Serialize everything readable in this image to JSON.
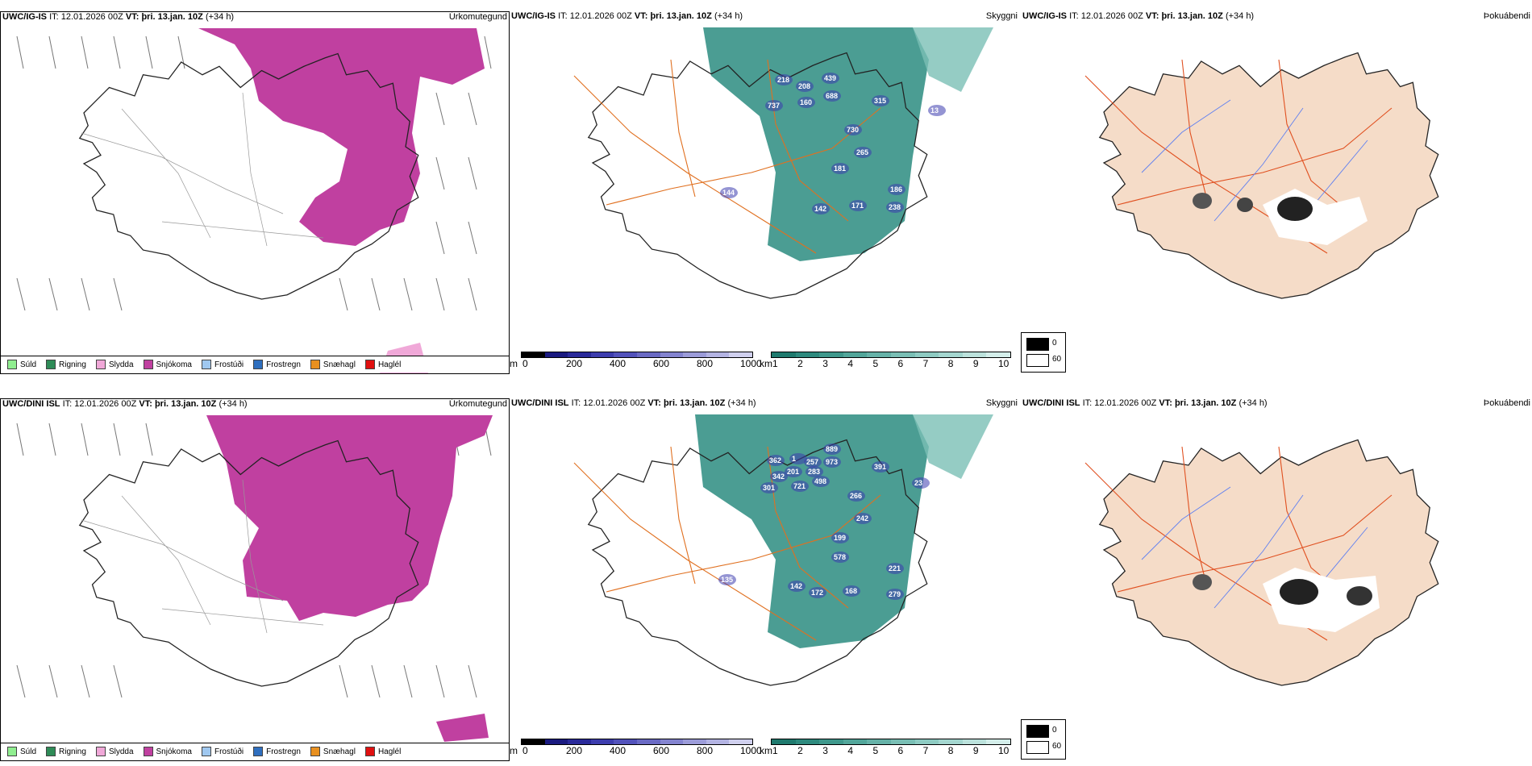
{
  "rows": [
    {
      "model": "UWC/IG-IS",
      "it_label": "IT:",
      "it_value": "12.01.2026 00Z",
      "vt_label": "VT:",
      "vt_value": "þri. 13.jan. 10Z",
      "lead": "(+34 h)",
      "ceiling_values": [
        "218",
        "208",
        "439",
        "737",
        "160",
        "688",
        "315",
        "13",
        "730",
        "265",
        "181",
        "186",
        "144",
        "142",
        "171",
        "238"
      ]
    },
    {
      "model": "UWC/DINI ISL",
      "it_label": "IT:",
      "it_value": "12.01.2026 00Z",
      "vt_label": "VT:",
      "vt_value": "þri. 13.jan. 10Z",
      "lead": "(+34 h)",
      "ceiling_values": [
        "362",
        "1",
        "889",
        "257",
        "973",
        "391",
        "342",
        "201",
        "283",
        "301",
        "721",
        "498",
        "266",
        "242",
        "199",
        "578",
        "221",
        "135",
        "142",
        "172",
        "168",
        "279",
        "23"
      ]
    }
  ],
  "panel_titles": {
    "precip_type": "Úrkomutegund",
    "clouds": "Skyggni",
    "fog": "Þokuábendi"
  },
  "precip_legend": [
    {
      "label": "Súld",
      "color": "#90ee90"
    },
    {
      "label": "Rigning",
      "color": "#2e8b57"
    },
    {
      "label": "Slydda",
      "color": "#f0a8d8"
    },
    {
      "label": "Snjókoma",
      "color": "#c040a0"
    },
    {
      "label": "Frostúði",
      "color": "#a0c8f0"
    },
    {
      "label": "Frostregn",
      "color": "#2f6fbf"
    },
    {
      "label": "Snæhagl",
      "color": "#e89020"
    },
    {
      "label": "Haglél",
      "color": "#e01010"
    }
  ],
  "ceiling_bar": {
    "unit": "m",
    "ticks": [
      "0",
      "200",
      "400",
      "600",
      "800",
      "1000"
    ],
    "colors": [
      "#000000",
      "#1a1a80",
      "#2a2a9a",
      "#3d3dae",
      "#5252bb",
      "#6a6ac4",
      "#8484d0",
      "#9c9cd9",
      "#b4b4e3",
      "#d0d0ee"
    ]
  },
  "visibility_bar": {
    "unit": "km",
    "ticks": [
      "1",
      "2",
      "3",
      "4",
      "5",
      "6",
      "7",
      "8",
      "9",
      "10"
    ],
    "colors": [
      "#1f7a6e",
      "#2e8a7e",
      "#3f988c",
      "#52a69a",
      "#66b2a8",
      "#7abfb5",
      "#8ecbc2",
      "#a4d6cf",
      "#bce2dc",
      "#d4eeea"
    ]
  },
  "fog_legend": {
    "items": [
      {
        "label": "0",
        "color": "#000000"
      },
      {
        "label": "60",
        "color": "#ffffff"
      }
    ]
  },
  "colors": {
    "snow": "#c040a0",
    "cloud_teal": "#2b8c80",
    "land_fog": "#f5dcc8",
    "roads": "#e07020",
    "rivers": "#6080f0",
    "fog_dark": "#222222"
  }
}
